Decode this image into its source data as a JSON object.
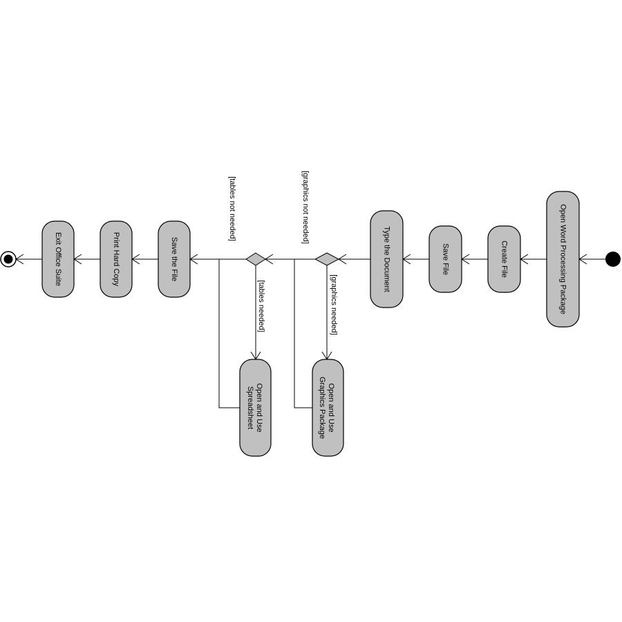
{
  "diagram": {
    "nodes": {
      "open_word": "Open Word Processing Package",
      "create_file": "Create File",
      "save_file": "Save File",
      "type_document": "Type the Document",
      "open_graphics_1": "Open and Use",
      "open_graphics_2": "Graphics Package",
      "open_spreadsheet_1": "Open and Use",
      "open_spreadsheet_2": "Spreadsheet",
      "save_the_file": "Save the File",
      "print_hard_copy": "Print Hard Copy",
      "exit_office": "Exit Office Suite"
    },
    "guards": {
      "graphics_not_needed": "[graphics not needed]",
      "graphics_needed": "[graphics needed]",
      "tables_not_needed": "[tables not needed]",
      "tables_needed": "[tables needed]"
    }
  }
}
